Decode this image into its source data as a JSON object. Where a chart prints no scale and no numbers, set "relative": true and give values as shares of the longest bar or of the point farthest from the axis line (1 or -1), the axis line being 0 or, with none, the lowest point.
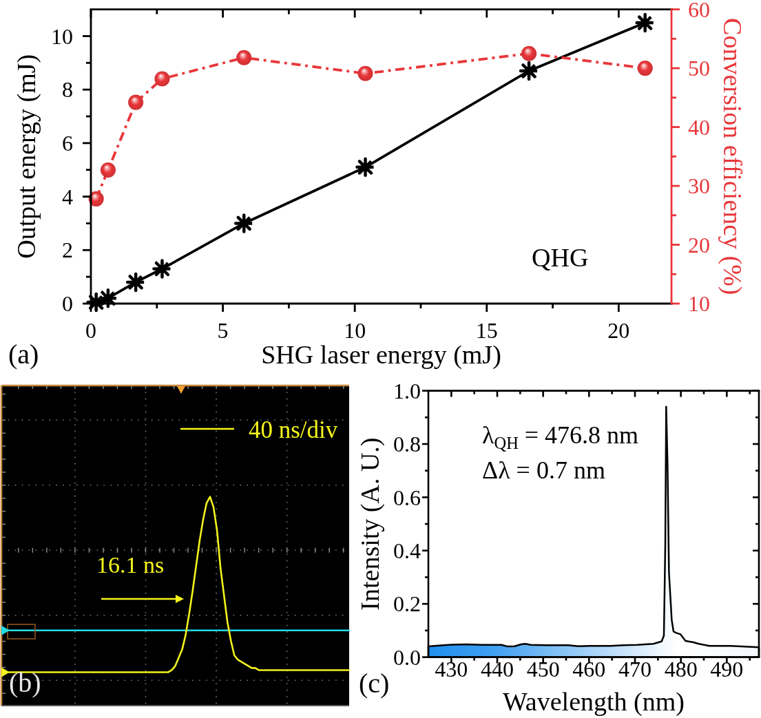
{
  "chart_data": [
    {
      "type": "line",
      "xlabel": "SHG laser energy (mJ)",
      "ylabel": "Output energy (mJ)",
      "y2label": "Conversion efficiency (%)",
      "x": [
        0.2,
        0.65,
        1.7,
        2.7,
        5.8,
        10.4,
        16.6,
        21.0
      ],
      "series": [
        {
          "color": "#000000",
          "values": [
            0.05,
            0.2,
            0.8,
            1.3,
            3.0,
            5.1,
            8.7,
            10.5
          ],
          "marker": "cross",
          "line_style": "solid"
        },
        {
          "color": "#e8363a",
          "axis": "y2",
          "values": [
            27.8,
            32.7,
            44.2,
            48.2,
            51.8,
            49.1,
            52.5,
            50.0
          ],
          "marker": "circle",
          "line_style": "dashdot"
        }
      ],
      "xlim": [
        0,
        22
      ],
      "xticks": [
        0,
        {
          "value": 2.5,
          "label": null
        },
        5,
        {
          "value": 7.5,
          "label": null
        },
        10,
        {
          "value": 12.5,
          "label": null
        },
        15,
        {
          "value": 17.5,
          "label": null
        },
        20
      ],
      "ylim": [
        0,
        11
      ],
      "yticks": [
        0,
        {
          "value": 1,
          "label": null
        },
        2,
        {
          "value": 3,
          "label": null
        },
        4,
        {
          "value": 5,
          "label": null
        },
        6,
        {
          "value": 7,
          "label": null
        },
        8,
        {
          "value": 9,
          "label": null
        },
        10
      ],
      "y2lim": [
        10,
        60
      ],
      "y2ticks": [
        10,
        {
          "value": 15,
          "label": null
        },
        20,
        {
          "value": 25,
          "label": null
        },
        30,
        {
          "value": 35,
          "label": null
        },
        40,
        {
          "value": 45,
          "label": null
        },
        50,
        {
          "value": 55,
          "label": null
        },
        60
      ],
      "annotations": [
        "QHG",
        "(a)"
      ]
    },
    {
      "type": "line",
      "relative": true,
      "grid": true,
      "categories": [
        null,
        null,
        null,
        null,
        null,
        null,
        null,
        null,
        null,
        null,
        null,
        null,
        null,
        null,
        null,
        null,
        null,
        null,
        null,
        null,
        null,
        null,
        null,
        null,
        null,
        null,
        null,
        null,
        null,
        null,
        null,
        null,
        null,
        null,
        null,
        null,
        null,
        null,
        null,
        null,
        null,
        null,
        null,
        null,
        null,
        null,
        null,
        null,
        null,
        null,
        null,
        null,
        null,
        null,
        null,
        null,
        null,
        null,
        null,
        null,
        null,
        null,
        null,
        null,
        null,
        null,
        null,
        null,
        null,
        null,
        null,
        null,
        null,
        null,
        null,
        null,
        null,
        null,
        null,
        null,
        null,
        null,
        null,
        null,
        null,
        null,
        null,
        null,
        null,
        null,
        null,
        null,
        null,
        null,
        null,
        null,
        null,
        null,
        null,
        null,
        null
      ],
      "series": [
        {
          "color": "#22dce4",
          "values": [
            0.36,
            0.36,
            0.36,
            0.36,
            0.36,
            0.36,
            0.36,
            0.36,
            0.36,
            0.36,
            0.36,
            0.36,
            0.36,
            0.36,
            0.36,
            0.36,
            0.36,
            0.36,
            0.36,
            0.36,
            0.36,
            0.36,
            0.36,
            0.36,
            0.36,
            0.36,
            0.36,
            0.36,
            0.36,
            0.36,
            0.36,
            0.36,
            0.36,
            0.36,
            0.36,
            0.36,
            0.36,
            0.36,
            0.36,
            0.36,
            0.36,
            0.36,
            0.36,
            0.36,
            0.36,
            0.36,
            0.36,
            0.36,
            0.36,
            0.36,
            0.36,
            0.36,
            0.36,
            0.36,
            0.36,
            0.36,
            0.36,
            0.36,
            0.36,
            0.36,
            0.36,
            0.36,
            0.36,
            0.36,
            0.36,
            0.36,
            0.36,
            0.36,
            0.36,
            0.36,
            0.36,
            0.36,
            0.36,
            0.36,
            0.36,
            0.36,
            0.36,
            0.36,
            0.36,
            0.36,
            0.36,
            0.36,
            0.36,
            0.36,
            0.36,
            0.36,
            0.36,
            0.36,
            0.36,
            0.36,
            0.36,
            0.36,
            0.36,
            0.36,
            0.36,
            0.36,
            0.36,
            0.36,
            0.36,
            0.36,
            0.36
          ]
        },
        {
          "color": "#f2f21e",
          "values": [
            0.16,
            0.16,
            0.16,
            0.16,
            0.16,
            0.16,
            0.16,
            0.16,
            0.16,
            0.16,
            0.16,
            0.16,
            0.16,
            0.16,
            0.16,
            0.16,
            0.16,
            0.16,
            0.16,
            0.16,
            0.16,
            0.16,
            0.16,
            0.16,
            0.16,
            0.16,
            0.16,
            0.16,
            0.16,
            0.16,
            0.16,
            0.16,
            0.16,
            0.16,
            0.16,
            0.16,
            0.16,
            0.16,
            0.16,
            0.16,
            0.16,
            0.16,
            0.16,
            0.16,
            0.16,
            0.16,
            0.16,
            0.16,
            0.16,
            0.17,
            0.19,
            0.23,
            0.27,
            0.34,
            0.44,
            0.55,
            0.67,
            0.79,
            0.89,
            0.97,
            1,
            0.95,
            0.84,
            0.66,
            0.53,
            0.4,
            0.31,
            0.24,
            0.22,
            0.21,
            0.2,
            0.19,
            0.18,
            0.18,
            0.17,
            0.17,
            0.17,
            0.17,
            0.17,
            0.17,
            0.17,
            0.17,
            0.17,
            0.17,
            0.17,
            0.17,
            0.17,
            0.17,
            0.17,
            0.17,
            0.17,
            0.17,
            0.17,
            0.17,
            0.17,
            0.17,
            0.17,
            0.17,
            0.17,
            0.17,
            0.17
          ]
        }
      ],
      "annotations": [
        "40 ns/div",
        "16.1 ns",
        "(b)"
      ]
    },
    {
      "type": "area",
      "xlabel": "Wavelength (nm)",
      "ylabel": "Intensity (A. U.)",
      "x": [
        425,
        426.3,
        430,
        433.3,
        436.8,
        440.9,
        442.3,
        443.8,
        445.2,
        446.1,
        447.3,
        450.8,
        455.4,
        457.7,
        460,
        464.7,
        467.6,
        470.5,
        474,
        475.8,
        476.3,
        476.6,
        476.8,
        477.1,
        477.4,
        478,
        478.4,
        479,
        479.9,
        481,
        482.7,
        483.9,
        486.2,
        490.8,
        497
      ],
      "values": [
        0.04,
        0.042,
        0.047,
        0.048,
        0.046,
        0.046,
        0.04,
        0.041,
        0.048,
        0.05,
        0.046,
        0.045,
        0.045,
        0.041,
        0.042,
        0.042,
        0.045,
        0.046,
        0.05,
        0.059,
        0.081,
        0.42,
        0.94,
        0.72,
        0.32,
        0.14,
        0.096,
        0.091,
        0.086,
        0.061,
        0.056,
        0.05,
        0.042,
        0.042,
        0.037
      ],
      "color": "#000000",
      "xlim": [
        425,
        497
      ],
      "xticks": [
        430,
        {
          "value": 435,
          "label": null
        },
        440,
        {
          "value": 445,
          "label": null
        },
        450,
        {
          "value": 455,
          "label": null
        },
        460,
        {
          "value": 465,
          "label": null
        },
        470,
        {
          "value": 475,
          "label": null
        },
        480,
        {
          "value": 485,
          "label": null
        },
        490,
        {
          "value": 495,
          "label": null
        }
      ],
      "ylim": [
        0,
        1
      ],
      "yticks": [
        {
          "value": 0,
          "label": "0.0"
        },
        {
          "value": 0.1,
          "label": null
        },
        {
          "value": 0.2,
          "label": "0.2"
        },
        {
          "value": 0.3,
          "label": null
        },
        {
          "value": 0.4,
          "label": "0.4"
        },
        {
          "value": 0.5,
          "label": null
        },
        {
          "value": 0.6,
          "label": "0.6"
        },
        {
          "value": 0.7,
          "label": null
        },
        {
          "value": 0.8,
          "label": "0.8"
        },
        {
          "value": 0.9,
          "label": null
        },
        {
          "value": 1,
          "label": "1.0"
        }
      ],
      "annotations": [
        "λ$_{QH}$ = 476.8 nm",
        "Δλ = 0.7 nm",
        "(c)"
      ]
    }
  ]
}
